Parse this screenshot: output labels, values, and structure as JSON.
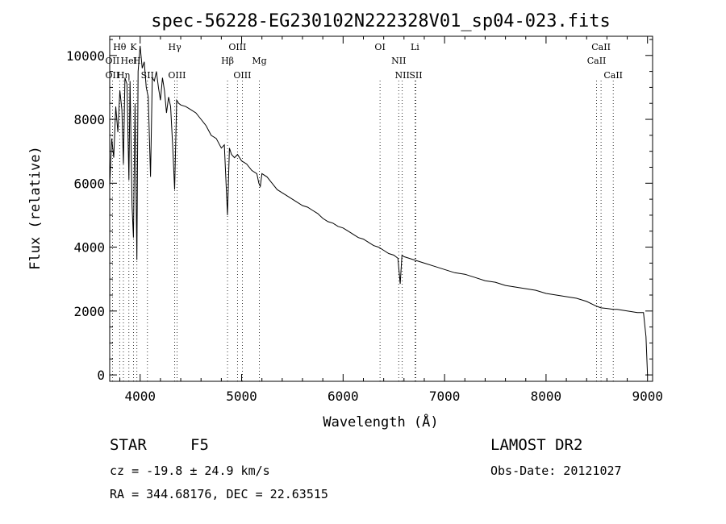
{
  "chart_data": {
    "type": "line",
    "title": "spec-56228-EG230102N222328V01_sp04-023.fits",
    "xlabel": "Wavelength (Å)",
    "ylabel": "Flux (relative)",
    "xlim": [
      3700,
      9050
    ],
    "ylim": [
      -200,
      10600
    ],
    "x_ticks": [
      4000,
      5000,
      6000,
      7000,
      8000,
      9000
    ],
    "y_ticks": [
      0,
      2000,
      4000,
      6000,
      8000,
      10000
    ],
    "series": [
      {
        "x": [
          3700,
          3720,
          3740,
          3760,
          3780,
          3800,
          3820,
          3835,
          3850,
          3870,
          3889,
          3900,
          3920,
          3934,
          3950,
          3968,
          3980,
          4000,
          4020,
          4040,
          4060,
          4080,
          4102,
          4120,
          4140,
          4160,
          4180,
          4200,
          4220,
          4240,
          4260,
          4280,
          4300,
          4320,
          4340,
          4360,
          4380,
          4400,
          4450,
          4500,
          4550,
          4600,
          4650,
          4700,
          4750,
          4800,
          4830,
          4861,
          4880,
          4900,
          4930,
          4960,
          5000,
          5050,
          5100,
          5150,
          5170,
          5184,
          5200,
          5250,
          5300,
          5350,
          5400,
          5450,
          5500,
          5550,
          5600,
          5650,
          5700,
          5750,
          5800,
          5850,
          5900,
          5950,
          6000,
          6050,
          6100,
          6150,
          6200,
          6250,
          6300,
          6350,
          6400,
          6450,
          6500,
          6540,
          6563,
          6580,
          6600,
          6650,
          6700,
          6750,
          6800,
          6900,
          7000,
          7100,
          7200,
          7300,
          7400,
          7500,
          7600,
          7700,
          7800,
          7900,
          8000,
          8100,
          8200,
          8300,
          8400,
          8498,
          8542,
          8600,
          8662,
          8700,
          8800,
          8900,
          8960,
          8985,
          9000
        ],
        "y": [
          5900,
          7400,
          6800,
          8400,
          7600,
          8900,
          8300,
          6600,
          9300,
          9100,
          6100,
          9200,
          5300,
          4300,
          8500,
          3600,
          9500,
          10300,
          9600,
          9800,
          9000,
          8700,
          6200,
          9300,
          9200,
          9500,
          9000,
          8600,
          9300,
          8900,
          8200,
          8700,
          8400,
          7200,
          5800,
          8600,
          8500,
          8450,
          8400,
          8300,
          8200,
          8000,
          7800,
          7500,
          7400,
          7100,
          7200,
          5000,
          7100,
          6900,
          6800,
          6900,
          6700,
          6600,
          6400,
          6300,
          6000,
          5900,
          6300,
          6200,
          6000,
          5800,
          5700,
          5600,
          5500,
          5400,
          5300,
          5250,
          5150,
          5050,
          4900,
          4800,
          4750,
          4650,
          4600,
          4500,
          4400,
          4300,
          4250,
          4150,
          4050,
          4000,
          3900,
          3800,
          3750,
          3650,
          2850,
          3750,
          3700,
          3650,
          3600,
          3550,
          3500,
          3400,
          3300,
          3200,
          3150,
          3050,
          2950,
          2900,
          2800,
          2750,
          2700,
          2650,
          2550,
          2500,
          2450,
          2400,
          2300,
          2150,
          2100,
          2080,
          2050,
          2050,
          2000,
          1950,
          1950,
          1200,
          0
        ]
      }
    ],
    "line_annotations": [
      {
        "label": "Hθ",
        "wavelength": 3798,
        "row": 1
      },
      {
        "label": "K",
        "wavelength": 3934,
        "row": 1
      },
      {
        "label": "Hγ",
        "wavelength": 4341,
        "row": 1
      },
      {
        "label": "OIII",
        "wavelength": 4959,
        "row": 1
      },
      {
        "label": "OI",
        "wavelength": 6364,
        "row": 1
      },
      {
        "label": "Li",
        "wavelength": 6708,
        "row": 1
      },
      {
        "label": "CaII",
        "wavelength": 8542,
        "row": 1
      },
      {
        "label": "OII",
        "wavelength": 3727,
        "row": 2
      },
      {
        "label": "HeI",
        "wavelength": 3889,
        "row": 2
      },
      {
        "label": "H",
        "wavelength": 3968,
        "row": 2
      },
      {
        "label": "Hβ",
        "wavelength": 4861,
        "row": 2
      },
      {
        "label": "Mg",
        "wavelength": 5175,
        "row": 2
      },
      {
        "label": "NII",
        "wavelength": 6548,
        "row": 2
      },
      {
        "label": "CaII",
        "wavelength": 8498,
        "row": 2
      },
      {
        "label": "OII",
        "wavelength": 3727,
        "row": 3
      },
      {
        "label": "Hη",
        "wavelength": 3835,
        "row": 3
      },
      {
        "label": "SII",
        "wavelength": 4072,
        "row": 3
      },
      {
        "label": "OIII",
        "wavelength": 4363,
        "row": 3
      },
      {
        "label": "OIII",
        "wavelength": 5007,
        "row": 3
      },
      {
        "label": "NII",
        "wavelength": 6583,
        "row": 3
      },
      {
        "label": "SII",
        "wavelength": 6717,
        "row": 3
      },
      {
        "label": "CaII",
        "wavelength": 8662,
        "row": 3
      }
    ],
    "grid": false
  },
  "info": {
    "object_class": "STAR",
    "subclass": "F5",
    "cz": "cz = -19.8 ± 24.9 km/s",
    "radec": "RA = 344.68176, DEC =  22.63515",
    "survey": "LAMOST DR2",
    "obs_date": "Obs-Date: 20121027"
  }
}
